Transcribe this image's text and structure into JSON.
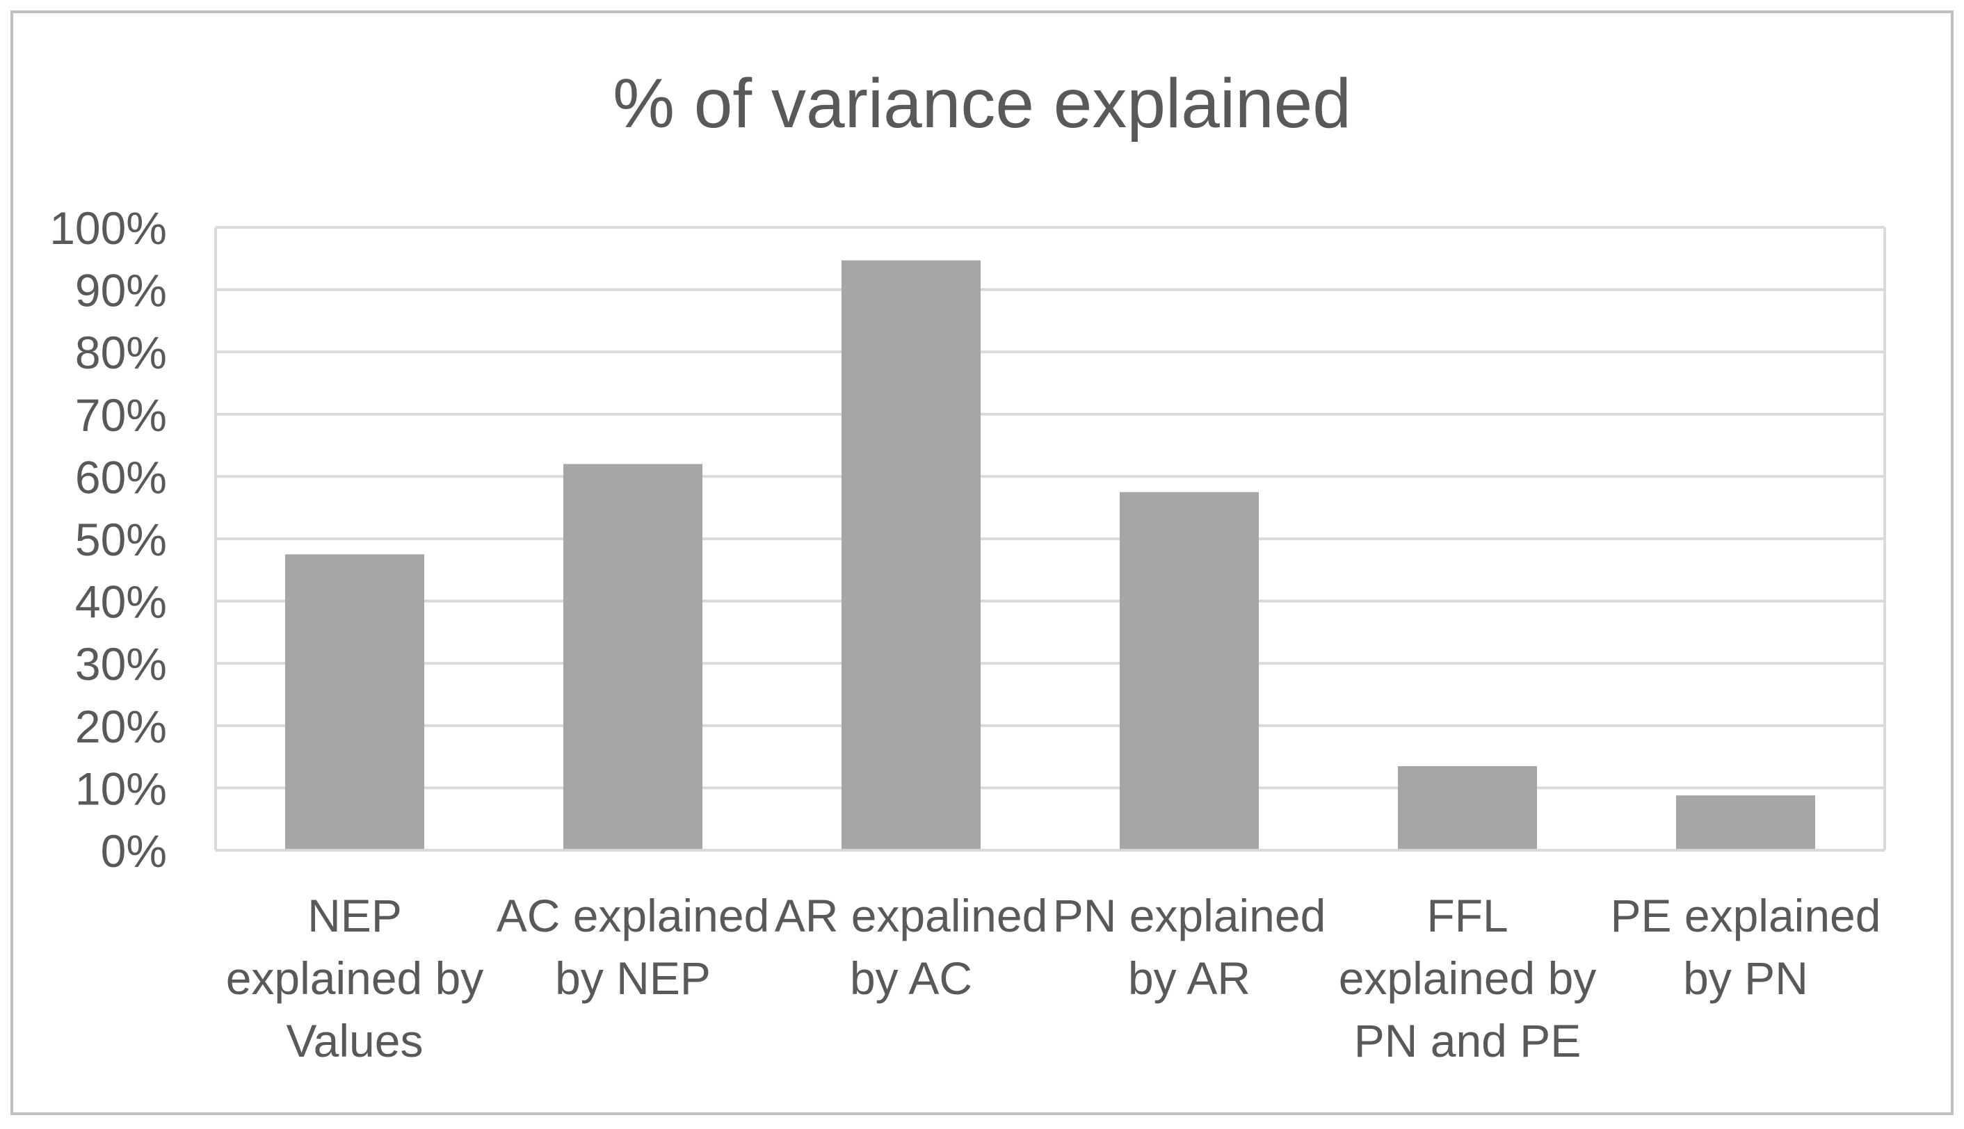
{
  "chart_data": {
    "type": "bar",
    "title": "% of variance explained",
    "categories": [
      [
        "NEP",
        "explained by",
        "Values"
      ],
      [
        "AC explained",
        "by NEP"
      ],
      [
        "AR expalined",
        "by AC"
      ],
      [
        "PN explained",
        "by AR"
      ],
      [
        "FFL",
        "explained by",
        "PN and PE"
      ],
      [
        "PE explained",
        "by PN"
      ]
    ],
    "values": [
      47.5,
      62,
      94.7,
      57.5,
      13.5,
      8.8
    ],
    "ylim": [
      0,
      100
    ],
    "yticks": [
      0,
      10,
      20,
      30,
      40,
      50,
      60,
      70,
      80,
      90,
      100
    ],
    "ytick_labels": [
      "0%",
      "10%",
      "20%",
      "30%",
      "40%",
      "50%",
      "60%",
      "70%",
      "80%",
      "90%",
      "100%"
    ],
    "xlabel": "",
    "ylabel": "",
    "grid": true,
    "legend": "none",
    "colors": {
      "bar": "#a6a6a6",
      "grid": "#d9d9d9",
      "axis": "#d9d9d9",
      "text": "#595959",
      "frame": "#bfbfbf"
    }
  }
}
